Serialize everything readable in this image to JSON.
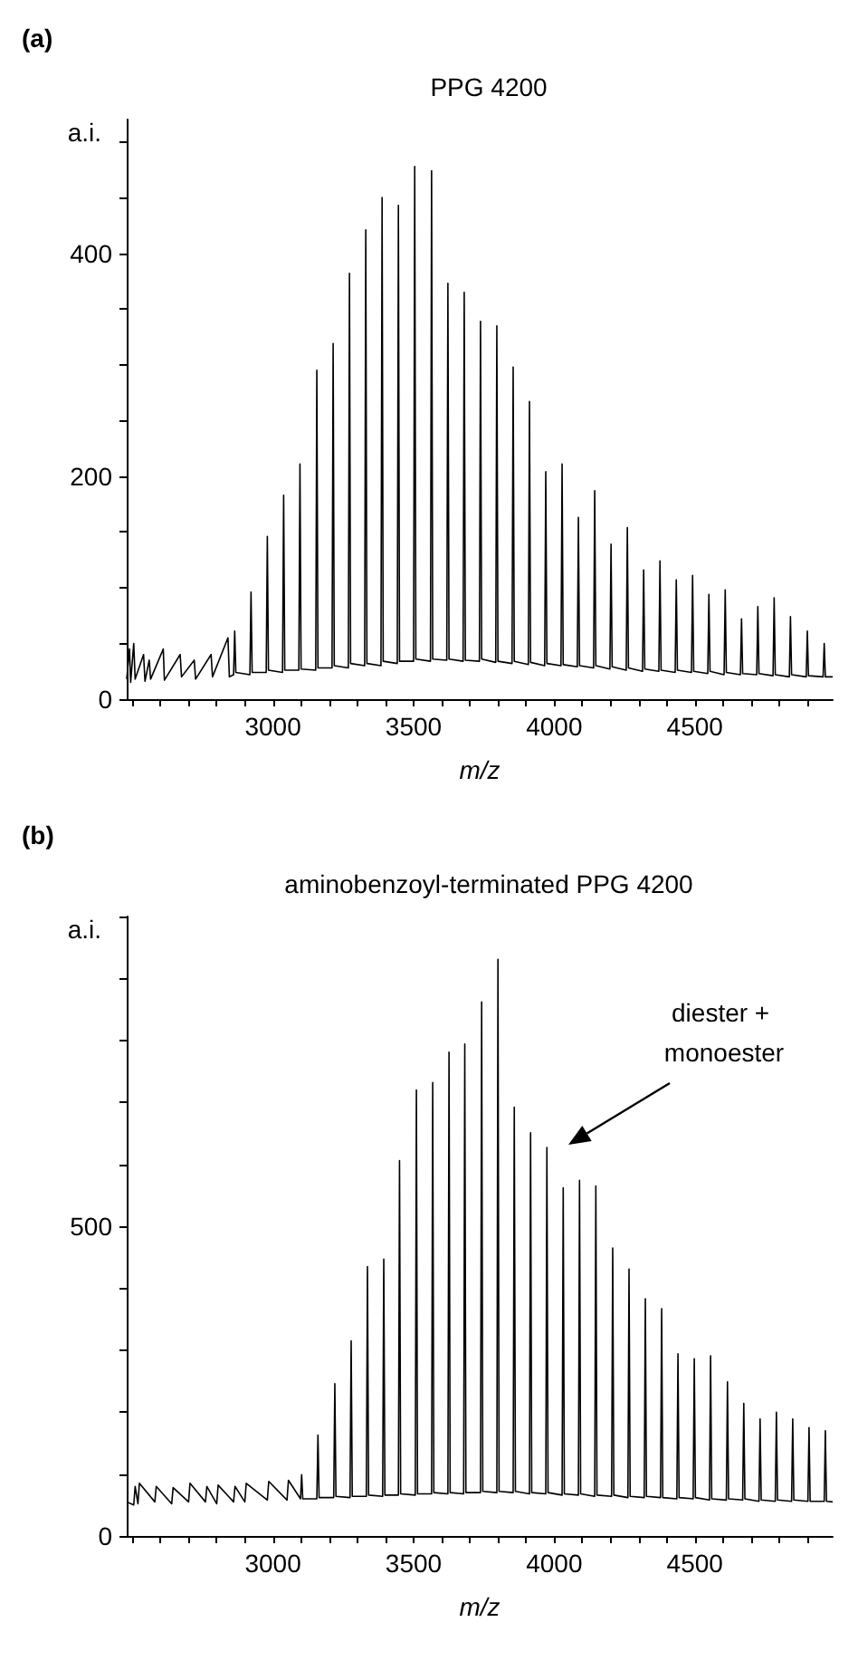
{
  "chart_data": [
    {
      "type": "line",
      "title": "PPG 4200",
      "xlabel": "m/z",
      "ylabel": "a.i.",
      "annotations": [
        "(a)"
      ],
      "marker": "none",
      "line_style": "solid",
      "xlim": [
        2480,
        4990
      ],
      "ylim": [
        0,
        520
      ],
      "xticks": [
        {
          "value": 2500,
          "label": null
        },
        {
          "value": 2600,
          "label": null
        },
        {
          "value": 2700,
          "label": null
        },
        {
          "value": 2800,
          "label": null
        },
        {
          "value": 2900,
          "label": null
        },
        3000,
        {
          "value": 3100,
          "label": null
        },
        {
          "value": 3200,
          "label": null
        },
        {
          "value": 3300,
          "label": null
        },
        {
          "value": 3400,
          "label": null
        },
        3500,
        {
          "value": 3600,
          "label": null
        },
        {
          "value": 3700,
          "label": null
        },
        {
          "value": 3800,
          "label": null
        },
        {
          "value": 3900,
          "label": null
        },
        4000,
        {
          "value": 4100,
          "label": null
        },
        {
          "value": 4200,
          "label": null
        },
        {
          "value": 4300,
          "label": null
        },
        {
          "value": 4400,
          "label": null
        },
        4500,
        {
          "value": 4600,
          "label": null
        },
        {
          "value": 4700,
          "label": null
        },
        {
          "value": 4800,
          "label": null
        },
        {
          "value": 4900,
          "label": null
        }
      ],
      "yticks": [
        0,
        {
          "value": 50,
          "label": null
        },
        {
          "value": 100,
          "label": null
        },
        {
          "value": 150,
          "label": null
        },
        200,
        {
          "value": 250,
          "label": null
        },
        {
          "value": 300,
          "label": null
        },
        {
          "value": 350,
          "label": null
        },
        400,
        {
          "value": 450,
          "label": null
        },
        {
          "value": 500,
          "label": null
        }
      ],
      "series": [
        {
          "color": "#000000",
          "x": [
            2480,
            2490,
            2494,
            2505,
            2510,
            2540,
            2545,
            2560,
            2565,
            2610,
            2614,
            2670,
            2675,
            2720,
            2725,
            2780,
            2785,
            2840,
            2845,
            2860,
            2864,
            2868,
            2918,
            2922,
            2926,
            2976,
            2980,
            2984,
            3034,
            3038,
            3042,
            3092,
            3096,
            3100,
            3152,
            3156,
            3160,
            3210,
            3214,
            3218,
            3268,
            3272,
            3276,
            3326,
            3330,
            3334,
            3384,
            3388,
            3392,
            3442,
            3446,
            3450,
            3500,
            3504,
            3508,
            3560,
            3564,
            3568,
            3618,
            3622,
            3626,
            3676,
            3680,
            3684,
            3734,
            3738,
            3742,
            3792,
            3796,
            3800,
            3850,
            3854,
            3858,
            3908,
            3912,
            3916,
            3966,
            3970,
            3974,
            4024,
            4028,
            4032,
            4082,
            4086,
            4090,
            4140,
            4144,
            4148,
            4198,
            4202,
            4206,
            4256,
            4260,
            4264,
            4314,
            4318,
            4322,
            4372,
            4376,
            4380,
            4430,
            4434,
            4438,
            4488,
            4492,
            4496,
            4546,
            4550,
            4554,
            4604,
            4608,
            4612,
            4662,
            4666,
            4670,
            4720,
            4724,
            4728,
            4778,
            4782,
            4786,
            4836,
            4840,
            4844,
            4896,
            4900,
            4904,
            4956,
            4960,
            4964,
            4990
          ],
          "values": [
            18,
            45,
            15,
            50,
            18,
            40,
            16,
            35,
            18,
            45,
            17,
            40,
            20,
            35,
            18,
            40,
            20,
            55,
            20,
            22,
            61,
            24,
            22,
            96,
            24,
            24,
            146,
            26,
            24,
            183,
            26,
            26,
            211,
            27,
            26,
            295,
            28,
            28,
            319,
            30,
            28,
            382,
            32,
            30,
            421,
            32,
            30,
            450,
            34,
            32,
            443,
            34,
            34,
            478,
            36,
            34,
            474,
            36,
            35,
            373,
            36,
            34,
            365,
            35,
            34,
            339,
            36,
            33,
            335,
            34,
            32,
            298,
            34,
            31,
            267,
            33,
            30,
            204,
            32,
            30,
            211,
            31,
            29,
            163,
            30,
            28,
            187,
            30,
            27,
            139,
            29,
            26,
            154,
            28,
            25,
            116,
            27,
            25,
            124,
            26,
            24,
            107,
            26,
            24,
            111,
            25,
            23,
            94,
            25,
            22,
            98,
            24,
            22,
            72,
            23,
            22,
            83,
            23,
            21,
            91,
            22,
            20,
            74,
            22,
            20,
            61,
            21,
            20,
            50,
            20,
            20
          ]
        }
      ]
    },
    {
      "type": "line",
      "title": "aminobenzoyl-terminated PPG 4200",
      "xlabel": "m/z",
      "ylabel": "a.i.",
      "annotations": [
        "(b)",
        "diester + monoester"
      ],
      "marker": "none",
      "line_style": "solid",
      "xlim": [
        2480,
        4990
      ],
      "ylim": [
        0,
        1000
      ],
      "xticks": [
        {
          "value": 2500,
          "label": null
        },
        {
          "value": 2600,
          "label": null
        },
        {
          "value": 2700,
          "label": null
        },
        {
          "value": 2800,
          "label": null
        },
        {
          "value": 2900,
          "label": null
        },
        3000,
        {
          "value": 3100,
          "label": null
        },
        {
          "value": 3200,
          "label": null
        },
        {
          "value": 3300,
          "label": null
        },
        {
          "value": 3400,
          "label": null
        },
        3500,
        {
          "value": 3600,
          "label": null
        },
        {
          "value": 3700,
          "label": null
        },
        {
          "value": 3800,
          "label": null
        },
        {
          "value": 3900,
          "label": null
        },
        4000,
        {
          "value": 4100,
          "label": null
        },
        {
          "value": 4200,
          "label": null
        },
        {
          "value": 4300,
          "label": null
        },
        {
          "value": 4400,
          "label": null
        },
        4500,
        {
          "value": 4600,
          "label": null
        },
        {
          "value": 4700,
          "label": null
        },
        {
          "value": 4800,
          "label": null
        },
        {
          "value": 4900,
          "label": null
        }
      ],
      "yticks": [
        0,
        {
          "value": 100,
          "label": null
        },
        {
          "value": 200,
          "label": null
        },
        {
          "value": 300,
          "label": null
        },
        {
          "value": 400,
          "label": null
        },
        500,
        {
          "value": 600,
          "label": null
        },
        {
          "value": 700,
          "label": null
        },
        {
          "value": 800,
          "label": null
        },
        {
          "value": 900,
          "label": null
        },
        {
          "value": 1000,
          "label": null
        }
      ],
      "series": [
        {
          "color": "#000000",
          "x": [
            2480,
            2505,
            2510,
            2520,
            2525,
            2580,
            2585,
            2640,
            2645,
            2700,
            2705,
            2760,
            2765,
            2800,
            2805,
            2860,
            2865,
            2900,
            2905,
            2980,
            2985,
            3050,
            3055,
            3098,
            3102,
            3106,
            3156,
            3160,
            3164,
            3216,
            3220,
            3224,
            3274,
            3278,
            3282,
            3332,
            3336,
            3340,
            3390,
            3394,
            3398,
            3446,
            3450,
            3454,
            3506,
            3510,
            3514,
            3564,
            3568,
            3572,
            3622,
            3626,
            3630,
            3678,
            3682,
            3686,
            3738,
            3742,
            3746,
            3796,
            3800,
            3804,
            3854,
            3858,
            3862,
            3912,
            3916,
            3920,
            3970,
            3974,
            3978,
            4028,
            4032,
            4036,
            4086,
            4090,
            4094,
            4144,
            4148,
            4152,
            4204,
            4208,
            4212,
            4262,
            4266,
            4270,
            4320,
            4324,
            4328,
            4378,
            4382,
            4386,
            4436,
            4440,
            4444,
            4494,
            4498,
            4502,
            4552,
            4556,
            4560,
            4612,
            4616,
            4620,
            4670,
            4674,
            4678,
            4728,
            4732,
            4736,
            4786,
            4790,
            4794,
            4844,
            4848,
            4852,
            4902,
            4906,
            4910,
            4960,
            4964,
            4968,
            4990
          ],
          "values": [
            55,
            50,
            80,
            52,
            85,
            55,
            80,
            52,
            78,
            55,
            85,
            55,
            80,
            52,
            82,
            55,
            80,
            55,
            85,
            58,
            88,
            58,
            90,
            60,
            99,
            60,
            60,
            163,
            62,
            62,
            246,
            64,
            62,
            315,
            64,
            64,
            435,
            66,
            64,
            447,
            66,
            66,
            606,
            68,
            66,
            720,
            68,
            68,
            732,
            70,
            68,
            781,
            70,
            68,
            794,
            70,
            70,
            862,
            72,
            70,
            931,
            72,
            70,
            692,
            72,
            68,
            651,
            70,
            68,
            627,
            70,
            66,
            562,
            68,
            66,
            574,
            68,
            64,
            565,
            66,
            64,
            465,
            66,
            62,
            431,
            64,
            62,
            383,
            64,
            62,
            367,
            62,
            60,
            294,
            62,
            60,
            286,
            62,
            58,
            291,
            60,
            58,
            249,
            60,
            58,
            214,
            60,
            56,
            189,
            58,
            56,
            200,
            58,
            56,
            189,
            58,
            56,
            175,
            56,
            56,
            170,
            56,
            55
          ]
        }
      ]
    }
  ]
}
